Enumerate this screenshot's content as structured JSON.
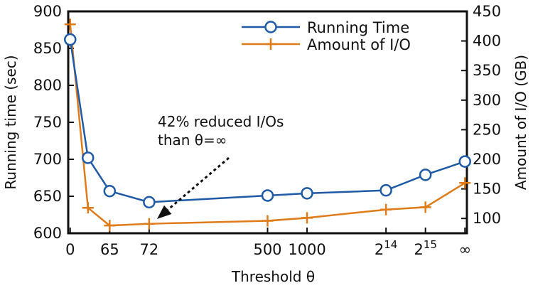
{
  "chart_data": {
    "type": "line",
    "x_tick_labels": [
      {
        "base": "0",
        "sup": ""
      },
      {
        "base": "65",
        "sup": ""
      },
      {
        "base": "72",
        "sup": ""
      },
      {
        "base": "500",
        "sup": ""
      },
      {
        "base": "1000",
        "sup": ""
      },
      {
        "base": "2",
        "sup": "14"
      },
      {
        "base": "2",
        "sup": "15"
      },
      {
        "base": "∞",
        "sup": ""
      }
    ],
    "xlabel": "Threshold θ",
    "ylabel_left": "Running time (sec)",
    "ylabel_right": "Amount of I/O (GB)",
    "ylim_left": [
      600,
      900
    ],
    "yticks_left": [
      600,
      650,
      700,
      750,
      800,
      850,
      900
    ],
    "ylim_right": [
      75,
      450
    ],
    "yticks_right": [
      100,
      150,
      200,
      250,
      300,
      350,
      400,
      450
    ],
    "series": [
      {
        "name": "Running Time",
        "axis": "left",
        "color": "#1f5aa6",
        "marker": "circle",
        "x": [
          0,
          0.45,
          1,
          2,
          5,
          6,
          8,
          9,
          10
        ],
        "values": [
          862,
          702,
          657,
          642,
          651,
          654,
          658,
          679,
          697
        ]
      },
      {
        "name": "Amount of I/O",
        "axis": "right",
        "color": "#e07b1a",
        "marker": "plus",
        "x": [
          0,
          0.45,
          1,
          2,
          5,
          6,
          8,
          9,
          10
        ],
        "values": [
          428,
          118,
          88,
          91,
          96,
          101,
          115,
          119,
          160
        ]
      }
    ],
    "x_tick_positions": [
      0,
      1,
      2,
      5,
      6,
      8,
      9,
      10
    ],
    "xlim": [
      -0.05,
      10.05
    ],
    "legend_position": "top-right",
    "annotation": {
      "lines": [
        "42% reduced I/Os",
        "than θ=∞"
      ],
      "arrow_to": {
        "x": 2.2,
        "y_right": 92
      }
    }
  }
}
